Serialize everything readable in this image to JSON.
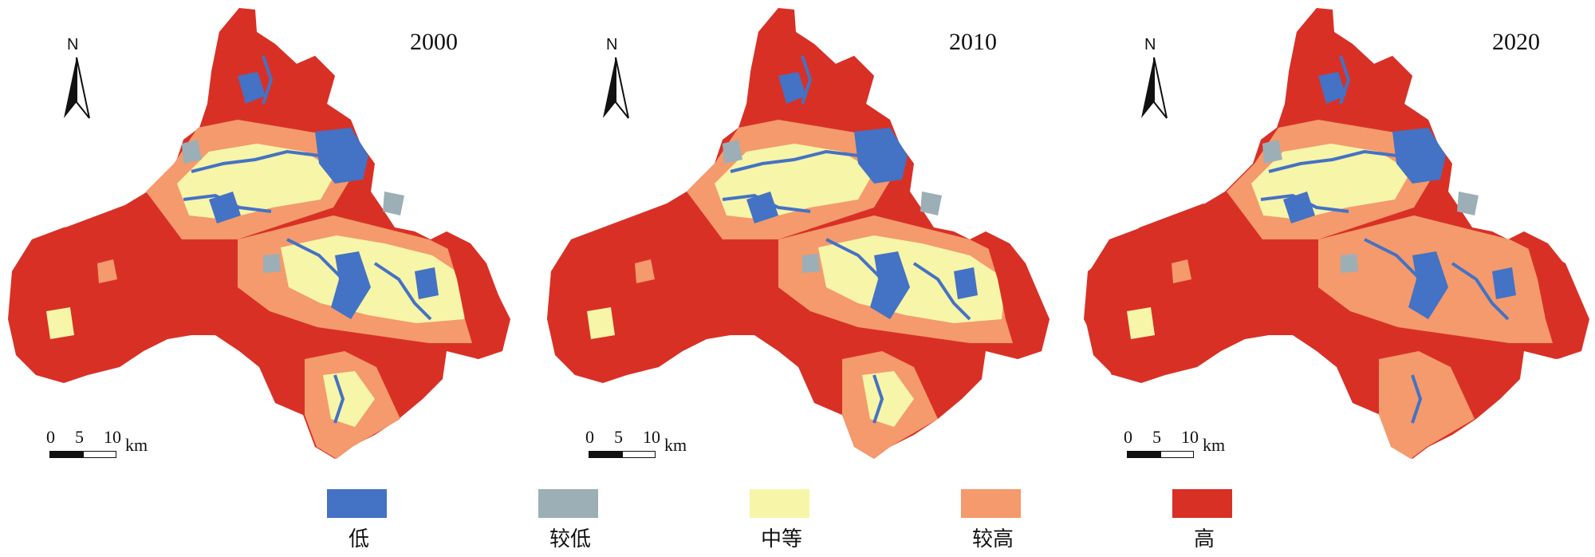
{
  "colors": {
    "low": "#4472c4",
    "lower": "#9cafb7",
    "medium": "#f7f5a8",
    "higher": "#f49a6c",
    "high": "#d93026"
  },
  "panels": [
    {
      "year": "2000"
    },
    {
      "year": "2010"
    },
    {
      "year": "2020"
    }
  ],
  "north_arrow": {
    "label": "N",
    "icon": "north-arrow-icon"
  },
  "scale_bar": {
    "ticks": [
      "0",
      "5",
      "10"
    ],
    "unit": "km"
  },
  "legend": {
    "items": [
      {
        "key": "low",
        "label": "低"
      },
      {
        "key": "lower",
        "label": "较低"
      },
      {
        "key": "medium",
        "label": "中等"
      },
      {
        "key": "higher",
        "label": "较高"
      },
      {
        "key": "high",
        "label": "高"
      }
    ]
  }
}
